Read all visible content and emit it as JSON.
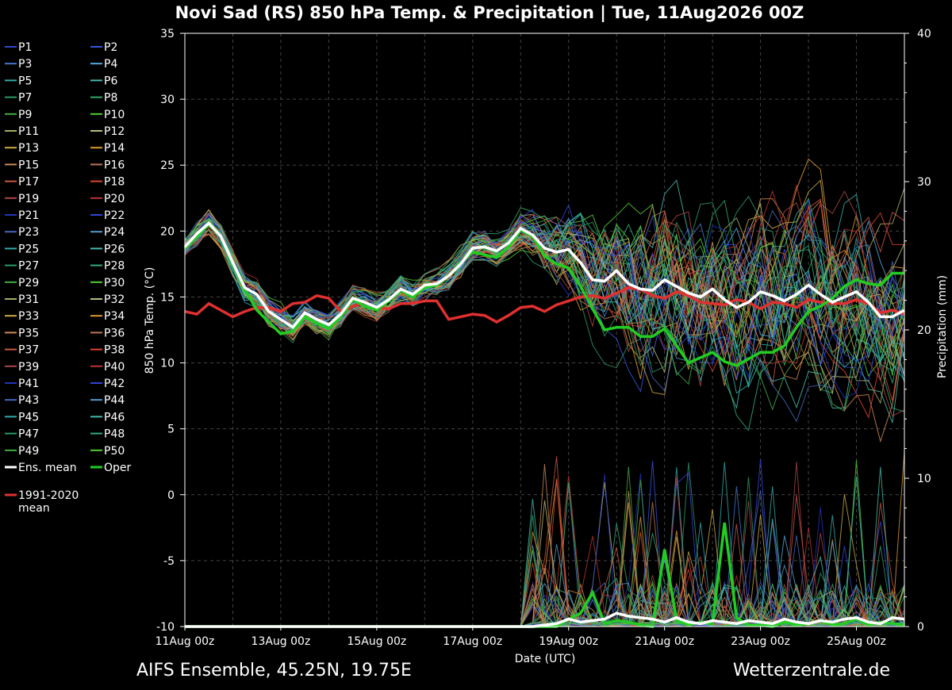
{
  "chart_data": {
    "type": "line",
    "title": "Novi Sad  (RS)  850 hPa Temp. & Precipitation | Tue, 11Aug2026 00Z",
    "xlabel": "Date (UTC)",
    "ylabel_left": "850 hPa Temp. (°C)",
    "ylabel_right": "Precipitation (mm)",
    "x_start": "2026-08-11T00:00Z",
    "x_step_hours": 6,
    "x_ticks": [
      "11Aug 00z",
      "13Aug 00z",
      "15Aug 00z",
      "17Aug 00z",
      "19Aug 00z",
      "21Aug 00z",
      "23Aug 00z",
      "25Aug 00z"
    ],
    "ylim_left": [
      -10,
      35
    ],
    "ylim_right": [
      0,
      40
    ],
    "y_ticks_left": [
      -10,
      -5,
      0,
      5,
      10,
      15,
      20,
      25,
      30,
      35
    ],
    "y_ticks_right": [
      0,
      10,
      20,
      30,
      40
    ],
    "grid": true,
    "legend_position": "left",
    "series_highlight": {
      "ens_mean": {
        "name": "Ens. mean",
        "color": "#ffffff",
        "values": [
          18.8,
          19.8,
          20.6,
          19.6,
          17.6,
          15.7,
          15.2,
          13.9,
          13.3,
          12.7,
          13.8,
          13.3,
          12.9,
          13.7,
          14.9,
          14.6,
          14.2,
          14.8,
          15.6,
          15.2,
          15.9,
          16.0,
          16.6,
          17.5,
          18.7,
          18.8,
          18.5,
          19.1,
          20.2,
          19.7,
          18.7,
          18.4,
          18.6,
          17.6,
          16.3,
          16.2,
          17.0,
          16.0,
          15.6,
          15.5,
          16.3,
          15.8,
          15.3,
          15.0,
          15.6,
          14.8,
          14.2,
          14.6,
          15.4,
          15.1,
          14.7,
          15.2,
          15.9,
          15.2,
          14.6,
          15.0,
          15.4,
          14.6,
          13.5,
          13.5,
          14.0
        ]
      },
      "oper": {
        "name": "Oper",
        "color": "#22cc22",
        "values": [
          18.7,
          19.6,
          20.5,
          19.6,
          17.5,
          15.6,
          14.0,
          13.1,
          12.2,
          12.4,
          13.5,
          13.0,
          12.6,
          13.5,
          14.8,
          14.3,
          14.0,
          14.7,
          15.5,
          15.0,
          15.7,
          15.9,
          16.6,
          17.6,
          18.4,
          18.2,
          18.0,
          18.8,
          20.1,
          19.6,
          18.1,
          17.5,
          17.2,
          15.8,
          14.1,
          12.5,
          12.7,
          12.7,
          12.0,
          12.0,
          12.6,
          11.3,
          10.0,
          10.4,
          10.8,
          10.1,
          9.8,
          10.3,
          10.8,
          10.8,
          11.3,
          12.7,
          13.9,
          14.3,
          14.9,
          15.8,
          16.3,
          16.0,
          15.9,
          16.8,
          16.8
        ]
      },
      "climate": {
        "name": "1991-2020 mean",
        "color": "#e03030",
        "values": [
          13.9,
          13.7,
          14.5,
          14.0,
          13.5,
          13.9,
          14.2,
          14.2,
          13.9,
          14.5,
          14.6,
          15.1,
          14.9,
          13.9,
          14.3,
          14.6,
          14.2,
          14.1,
          14.5,
          14.5,
          14.7,
          14.7,
          13.3,
          13.5,
          13.7,
          13.6,
          13.1,
          13.6,
          14.2,
          14.3,
          13.9,
          14.4,
          14.7,
          15.0,
          15.1,
          14.9,
          15.3,
          15.7,
          15.6,
          15.1,
          14.9,
          15.4,
          15.1,
          14.6,
          14.5,
          14.4,
          14.8,
          14.6,
          14.1,
          14.6,
          14.5,
          14.2,
          14.8,
          14.6,
          14.5,
          14.5,
          14.8,
          14.5,
          13.8,
          14.0,
          13.7
        ]
      },
      "ens_mean_precip": {
        "name": "Ens. mean precipitation",
        "color": "#ffffff",
        "values": [
          0,
          0,
          0,
          0,
          0,
          0,
          0,
          0,
          0,
          0,
          0,
          0,
          0,
          0,
          0,
          0,
          0,
          0,
          0,
          0,
          0,
          0,
          0,
          0,
          0,
          0,
          0,
          0,
          0,
          0,
          0.1,
          0.2,
          0.5,
          0.3,
          0.4,
          0.5,
          0.9,
          0.7,
          0.6,
          0.5,
          0.3,
          0.6,
          0.3,
          0.2,
          0.4,
          0.3,
          0.2,
          0.4,
          0.3,
          0.2,
          0.5,
          0.3,
          0.2,
          0.4,
          0.3,
          0.5,
          0.6,
          0.3,
          0.2,
          0.6,
          0.5
        ]
      },
      "oper_precip": {
        "name": "Oper precipitation",
        "color": "#22cc22",
        "values": [
          0,
          0,
          0,
          0,
          0,
          0,
          0,
          0,
          0,
          0,
          0,
          0,
          0,
          0,
          0,
          0,
          0,
          0,
          0,
          0,
          0,
          0,
          0,
          0,
          0,
          0,
          0,
          0,
          0,
          0,
          0,
          0,
          0.5,
          0.9,
          2.3,
          0.2,
          0.4,
          0.3,
          0.1,
          0,
          5.2,
          0.4,
          0.1,
          0.3,
          0.2,
          7.0,
          0.6,
          0.1,
          0.1,
          0,
          0.3,
          0.1,
          0.2,
          0.4,
          0.1,
          0.2,
          0.5,
          0.1,
          0.3,
          0.2,
          0.1
        ]
      }
    },
    "members": {
      "count": 50,
      "prefix": "P",
      "colors": [
        "#3344cc",
        "#3355dd",
        "#4477cc",
        "#55aadd",
        "#33aaaa",
        "#44bbaa",
        "#2a9966",
        "#33aa66",
        "#44aa44",
        "#55cc33",
        "#aaaa66",
        "#bbbb77",
        "#ccaa44",
        "#dd9933",
        "#cc8855",
        "#bb7755",
        "#cc5544",
        "#dd4433",
        "#aa4444",
        "#bb3333",
        "#2233bb",
        "#3344dd",
        "#4466bb",
        "#5599cc",
        "#33aaaa",
        "#44bbaa",
        "#2a9966",
        "#33aa77",
        "#44aa44",
        "#55cc33",
        "#aaaa66",
        "#bbbb77",
        "#ccaa44",
        "#dd9933",
        "#cc8855",
        "#bb7755",
        "#cc5544",
        "#dd4433",
        "#aa4444",
        "#bb3333",
        "#2233bb",
        "#3344dd",
        "#4466bb",
        "#5599cc",
        "#33aaaa",
        "#44bbaa",
        "#2a9966",
        "#33aa77",
        "#44aa44",
        "#55cc33"
      ]
    }
  },
  "legend": {
    "members": [
      "P1",
      "P2",
      "P3",
      "P4",
      "P5",
      "P6",
      "P7",
      "P8",
      "P9",
      "P10",
      "P11",
      "P12",
      "P13",
      "P14",
      "P15",
      "P16",
      "P17",
      "P18",
      "P19",
      "P20",
      "P21",
      "P22",
      "P23",
      "P24",
      "P25",
      "P26",
      "P27",
      "P28",
      "P29",
      "P30",
      "P31",
      "P32",
      "P33",
      "P34",
      "P35",
      "P36",
      "P37",
      "P38",
      "P39",
      "P40",
      "P41",
      "P42",
      "P43",
      "P44",
      "P45",
      "P46",
      "P47",
      "P48",
      "P49",
      "P50"
    ],
    "ens_mean": "Ens. mean",
    "oper": "Oper",
    "climate_line1": "1991-2020",
    "climate_line2": "mean"
  },
  "footer": {
    "left": "AIFS Ensemble, 45.25N, 19.75E",
    "right": "Wetterzentrale.de"
  }
}
